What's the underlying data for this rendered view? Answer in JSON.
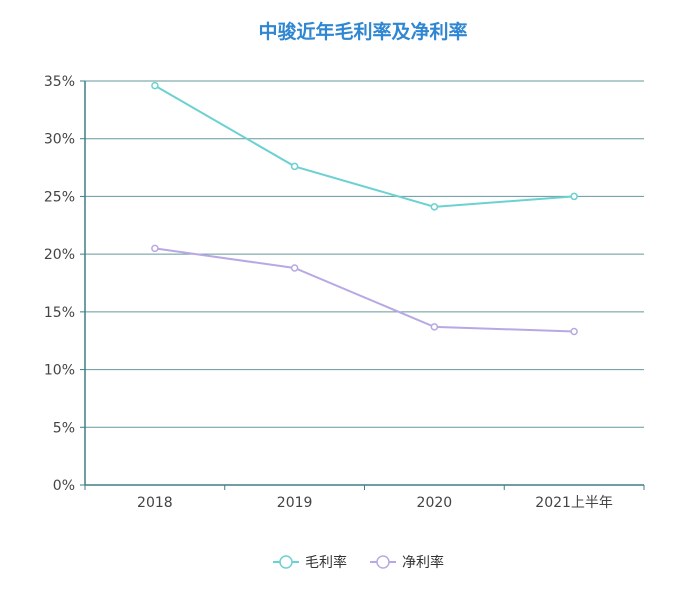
{
  "chart_data": {
    "type": "line",
    "title": "中骏近年毛利率及净利率",
    "categories": [
      "2018",
      "2019",
      "2020",
      "2021上半年"
    ],
    "series": [
      {
        "name": "毛利率",
        "values": [
          34.6,
          27.6,
          24.1,
          25.0
        ],
        "color": "#6cd1d1"
      },
      {
        "name": "净利率",
        "values": [
          20.5,
          18.8,
          13.7,
          13.3
        ],
        "color": "#b9a8e3"
      }
    ],
    "ylim": [
      0,
      35
    ],
    "yticks": [
      "0%",
      "5%",
      "10%",
      "15%",
      "20%",
      "25%",
      "30%",
      "35%"
    ],
    "grid": true,
    "legend": "bottom",
    "title_color": "#2f86d2",
    "axis_color": "#3f7f86"
  }
}
